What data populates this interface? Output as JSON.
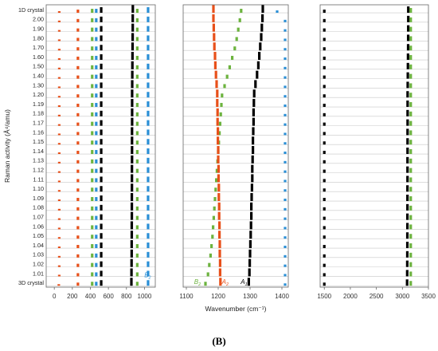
{
  "figure": {
    "caption": "(B)",
    "ylabel": "Raman activity (Å⁴/amu)",
    "xlabel": "Wavenumber (cm⁻¹)"
  },
  "colors": {
    "black": "#000000",
    "orange": "#e8501a",
    "green": "#6cb33e",
    "blue": "#2a8fd6",
    "grid": "#c8c8c8",
    "axis": "#666666"
  },
  "chart_data": [
    {
      "type": "scatter",
      "panel": "left",
      "categories": [
        "3D crystal",
        "1.01",
        "1.02",
        "1.03",
        "1.04",
        "1.05",
        "1.06",
        "1.07",
        "1.08",
        "1.09",
        "1.10",
        "1.11",
        "1.12",
        "1.13",
        "1.14",
        "1.15",
        "1.16",
        "1.17",
        "1.18",
        "1.19",
        "1.20",
        "1.30",
        "1.40",
        "1.50",
        "1.60",
        "1.70",
        "1.80",
        "1.90",
        "2.00",
        "1D crystal"
      ],
      "xlim": [
        -90,
        1120
      ],
      "xticks": [
        0,
        200,
        400,
        600,
        800,
        1000
      ],
      "series": [
        {
          "color": "orange",
          "x": [
            50,
            55,
            55,
            55,
            55,
            55,
            55,
            55,
            55,
            55,
            55,
            55,
            55,
            55,
            55,
            55,
            55,
            55,
            55,
            55,
            55,
            55,
            55,
            55,
            55,
            55,
            55,
            55,
            55,
            55
          ],
          "h": [
            2,
            2,
            2,
            2,
            2,
            2,
            2,
            2,
            2,
            2,
            2,
            2,
            2,
            2,
            2,
            2,
            2,
            2,
            2,
            2,
            2,
            2,
            2,
            2,
            2,
            2,
            2,
            2,
            2,
            2
          ]
        },
        {
          "color": "orange",
          "x": [
            262,
            262,
            262,
            262,
            262,
            262,
            262,
            262,
            262,
            262,
            262,
            262,
            262,
            262,
            262,
            262,
            262,
            262,
            262,
            262,
            262,
            262,
            262,
            262,
            262,
            262,
            262,
            262,
            262,
            262
          ],
          "h": [
            4,
            4,
            4,
            4,
            4,
            4,
            4,
            4,
            4,
            4,
            4,
            4,
            4,
            4,
            4,
            4,
            4,
            4,
            4,
            4,
            4,
            4,
            4,
            4,
            4,
            4,
            4,
            4,
            4,
            4
          ]
        },
        {
          "color": "green",
          "x": [
            420,
            420,
            420,
            420,
            420,
            420,
            420,
            420,
            420,
            420,
            420,
            420,
            420,
            420,
            420,
            420,
            420,
            420,
            420,
            420,
            420,
            420,
            420,
            420,
            420,
            420,
            420,
            420,
            420,
            420
          ],
          "h": [
            5,
            5,
            5,
            5,
            5,
            5,
            5,
            5,
            5,
            5,
            5,
            5,
            5,
            5,
            5,
            5,
            5,
            5,
            5,
            5,
            5,
            5,
            5,
            5,
            5,
            5,
            5,
            5,
            5,
            5
          ]
        },
        {
          "color": "blue",
          "x": [
            465,
            465,
            465,
            465,
            465,
            465,
            465,
            465,
            465,
            465,
            465,
            465,
            465,
            465,
            465,
            465,
            465,
            465,
            465,
            465,
            465,
            465,
            465,
            465,
            465,
            465,
            465,
            465,
            465,
            465
          ],
          "h": [
            5,
            5,
            5,
            5,
            5,
            5,
            5,
            5,
            5,
            5,
            5,
            5,
            5,
            5,
            5,
            5,
            5,
            5,
            5,
            5,
            5,
            5,
            5,
            5,
            5,
            5,
            5,
            5,
            5,
            5
          ]
        },
        {
          "color": "black",
          "x": [
            520,
            520,
            520,
            520,
            520,
            520,
            520,
            520,
            520,
            520,
            520,
            520,
            520,
            520,
            520,
            520,
            520,
            520,
            520,
            520,
            520,
            520,
            520,
            520,
            520,
            520,
            520,
            520,
            520,
            520
          ],
          "h": [
            7,
            7,
            7,
            7,
            7,
            7,
            7,
            7,
            7,
            7,
            7,
            7,
            7,
            7,
            7,
            7,
            7,
            7,
            7,
            7,
            7,
            7,
            7,
            7,
            7,
            7,
            7,
            7,
            7,
            7
          ]
        },
        {
          "color": "black",
          "x": [
            855,
            856,
            857,
            858,
            858,
            859,
            859,
            860,
            860,
            860,
            861,
            861,
            861,
            862,
            862,
            862,
            862,
            863,
            863,
            863,
            863,
            864,
            865,
            866,
            867,
            868,
            869,
            870,
            870,
            871
          ],
          "h": [
            10,
            10,
            10,
            10,
            10,
            10,
            10,
            10,
            10,
            10,
            10,
            10,
            10,
            10,
            10,
            10,
            10,
            10,
            10,
            10,
            10,
            10,
            10,
            10,
            10,
            10,
            10,
            10,
            10,
            10
          ]
        },
        {
          "color": "green",
          "x": [
            920,
            920,
            920,
            920,
            920,
            920,
            920,
            920,
            920,
            920,
            920,
            920,
            920,
            920,
            920,
            920,
            920,
            920,
            920,
            920,
            920,
            920,
            920,
            920,
            920,
            920,
            920,
            920,
            920,
            920
          ],
          "h": [
            5,
            5,
            5,
            5,
            5,
            5,
            5,
            5,
            5,
            5,
            5,
            5,
            5,
            5,
            5,
            5,
            5,
            5,
            5,
            5,
            5,
            5,
            5,
            5,
            5,
            5,
            5,
            5,
            5,
            5
          ]
        },
        {
          "color": "blue",
          "x": [
            1040,
            1040,
            1040,
            1040,
            1040,
            1040,
            1040,
            1040,
            1040,
            1040,
            1040,
            1040,
            1040,
            1040,
            1040,
            1040,
            1040,
            1040,
            1040,
            1040,
            1040,
            1040,
            1040,
            1040,
            1040,
            1040,
            1040,
            1040,
            1040,
            1040
          ],
          "h": [
            7,
            7,
            7,
            7,
            7,
            7,
            7,
            7,
            7,
            7,
            7,
            7,
            7,
            7,
            7,
            7,
            7,
            7,
            7,
            7,
            7,
            7,
            7,
            7,
            7,
            7,
            7,
            7,
            7,
            7
          ]
        }
      ],
      "annotations": [
        {
          "text": "B",
          "sub": "2",
          "x": 1000,
          "category": "1.01",
          "color": "blue"
        }
      ]
    },
    {
      "type": "scatter",
      "panel": "middle",
      "categories": [
        "3D crystal",
        "1.01",
        "1.02",
        "1.03",
        "1.04",
        "1.05",
        "1.06",
        "1.07",
        "1.08",
        "1.09",
        "1.10",
        "1.11",
        "1.12",
        "1.13",
        "1.14",
        "1.15",
        "1.16",
        "1.17",
        "1.18",
        "1.19",
        "1.20",
        "1.30",
        "1.40",
        "1.50",
        "1.60",
        "1.70",
        "1.80",
        "1.90",
        "2.00",
        "1D crystal"
      ],
      "xlim": [
        1090,
        1420
      ],
      "xticks": [
        1100,
        1200,
        1300,
        1400
      ],
      "series": [
        {
          "name": "B",
          "sub": "2",
          "color": "green",
          "x": [
            1160,
            1168,
            1172,
            1176,
            1179,
            1182,
            1184,
            1186,
            1188,
            1190,
            1192,
            1194,
            1196,
            1198,
            1200,
            1202,
            1204,
            1206,
            1208,
            1210,
            1212,
            1220,
            1228,
            1236,
            1244,
            1252,
            1258,
            1263,
            1268,
            1272
          ],
          "h": [
            5,
            5,
            5,
            5,
            5,
            5,
            5,
            5,
            5,
            5,
            5,
            5,
            5,
            5,
            5,
            5,
            5,
            5,
            5,
            5,
            5,
            5,
            5,
            5,
            5,
            5,
            5,
            5,
            5,
            5
          ]
        },
        {
          "name": "A",
          "sub": "2",
          "color": "orange",
          "x": [
            1207,
            1206,
            1206,
            1205,
            1205,
            1204,
            1204,
            1203,
            1203,
            1202,
            1202,
            1201,
            1201,
            1200,
            1200,
            1199,
            1199,
            1198,
            1198,
            1197,
            1197,
            1195,
            1193,
            1191,
            1190,
            1188,
            1187,
            1186,
            1185,
            1185
          ],
          "h": [
            10,
            10,
            10,
            10,
            10,
            10,
            10,
            10,
            10,
            10,
            10,
            10,
            10,
            10,
            10,
            10,
            10,
            10,
            10,
            10,
            10,
            10,
            10,
            10,
            10,
            10,
            10,
            10,
            10,
            10
          ]
        },
        {
          "name": "A",
          "sub": "1",
          "color": "black",
          "x": [
            1296,
            1298,
            1299,
            1300,
            1301,
            1302,
            1303,
            1304,
            1304,
            1305,
            1306,
            1307,
            1307,
            1308,
            1309,
            1309,
            1310,
            1311,
            1311,
            1312,
            1313,
            1317,
            1322,
            1326,
            1329,
            1332,
            1335,
            1337,
            1339,
            1340
          ],
          "h": [
            10,
            10,
            10,
            10,
            10,
            10,
            10,
            10,
            10,
            10,
            10,
            10,
            10,
            10,
            10,
            10,
            10,
            10,
            10,
            10,
            10,
            10,
            10,
            10,
            10,
            10,
            10,
            10,
            10,
            10
          ]
        },
        {
          "color": "blue",
          "x": [
            1410,
            1410,
            1410,
            1410,
            1410,
            1410,
            1410,
            1410,
            1410,
            1410,
            1410,
            1410,
            1410,
            1410,
            1410,
            1410,
            1410,
            1410,
            1410,
            1410,
            1410,
            1410,
            1410,
            1410,
            1410,
            1410,
            1410,
            1410,
            1410,
            1385
          ],
          "h": [
            3,
            3,
            3,
            3,
            3,
            3,
            3,
            3,
            3,
            3,
            3,
            3,
            3,
            3,
            3,
            3,
            3,
            3,
            3,
            3,
            3,
            3,
            3,
            3,
            3,
            3,
            3,
            3,
            3,
            3
          ]
        }
      ]
    },
    {
      "type": "scatter",
      "panel": "right",
      "categories": [
        "3D crystal",
        "1.01",
        "1.02",
        "1.03",
        "1.04",
        "1.05",
        "1.06",
        "1.07",
        "1.08",
        "1.09",
        "1.10",
        "1.11",
        "1.12",
        "1.13",
        "1.14",
        "1.15",
        "1.16",
        "1.17",
        "1.18",
        "1.19",
        "1.20",
        "1.30",
        "1.40",
        "1.50",
        "1.60",
        "1.70",
        "1.80",
        "1.90",
        "2.00",
        "1D crystal"
      ],
      "xlim": [
        1420,
        3500
      ],
      "xticks": [
        1500,
        2000,
        2500,
        3000,
        3500
      ],
      "series": [
        {
          "color": "black",
          "x": [
            1500,
            1500,
            1500,
            1500,
            1500,
            1500,
            1500,
            1500,
            1500,
            1500,
            1500,
            1500,
            1500,
            1500,
            1500,
            1500,
            1500,
            1500,
            1500,
            1500,
            1500,
            1500,
            1500,
            1500,
            1500,
            1500,
            1500,
            1500,
            1500,
            1500
          ],
          "h": [
            4,
            4,
            4,
            4,
            4,
            4,
            4,
            4,
            4,
            4,
            4,
            4,
            4,
            4,
            4,
            4,
            4,
            4,
            4,
            4,
            4,
            4,
            4,
            4,
            4,
            4,
            4,
            4,
            4,
            4
          ]
        },
        {
          "color": "black",
          "x": [
            3090,
            3092,
            3093,
            3094,
            3095,
            3095,
            3096,
            3096,
            3097,
            3097,
            3097,
            3098,
            3098,
            3098,
            3099,
            3099,
            3099,
            3100,
            3100,
            3100,
            3100,
            3102,
            3104,
            3106,
            3108,
            3110,
            3111,
            3112,
            3113,
            3113
          ],
          "h": [
            8,
            8,
            8,
            8,
            8,
            8,
            8,
            8,
            8,
            8,
            8,
            8,
            8,
            8,
            8,
            8,
            8,
            8,
            8,
            8,
            8,
            8,
            8,
            8,
            8,
            8,
            8,
            8,
            8,
            8
          ]
        },
        {
          "color": "green",
          "x": [
            3160,
            3160,
            3160,
            3160,
            3160,
            3160,
            3160,
            3160,
            3160,
            3160,
            3160,
            3160,
            3160,
            3160,
            3160,
            3160,
            3160,
            3160,
            3160,
            3160,
            3160,
            3160,
            3160,
            3160,
            3160,
            3160,
            3160,
            3160,
            3160,
            3160
          ],
          "h": [
            6,
            6,
            6,
            6,
            6,
            6,
            6,
            6,
            6,
            6,
            6,
            6,
            6,
            6,
            6,
            6,
            6,
            6,
            6,
            6,
            6,
            6,
            6,
            6,
            6,
            6,
            6,
            6,
            6,
            6
          ]
        }
      ]
    }
  ]
}
